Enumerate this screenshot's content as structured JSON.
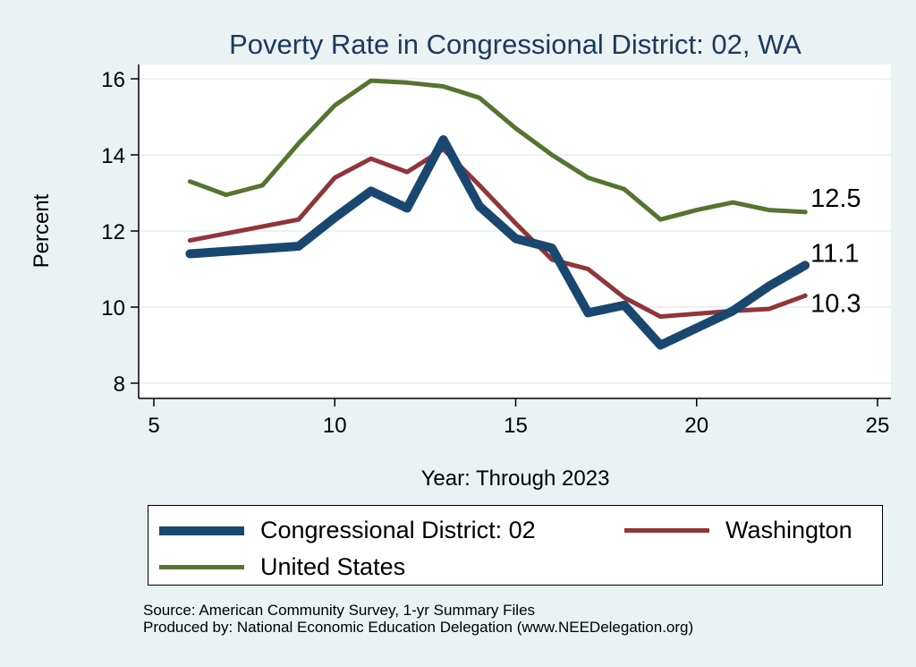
{
  "chart_data": {
    "type": "line",
    "title": "Poverty Rate in Congressional District:  02, WA",
    "xlabel": "Year: Through 2023",
    "ylabel": "Percent",
    "xlim": [
      5,
      25
    ],
    "ylim": [
      7.6,
      16.3
    ],
    "xticks": [
      5,
      10,
      15,
      20,
      25
    ],
    "yticks": [
      8,
      10,
      12,
      14,
      16
    ],
    "grid": true,
    "series": [
      {
        "name": "Congressional District:  02",
        "color": "#1a476f",
        "width": 10,
        "x": [
          6,
          9,
          10,
          11,
          12,
          13,
          14,
          15,
          16,
          17,
          18,
          19,
          20,
          21,
          22,
          23
        ],
        "values": [
          11.4,
          11.6,
          12.35,
          13.05,
          12.6,
          14.4,
          12.65,
          11.8,
          11.55,
          9.85,
          10.05,
          9.0,
          9.45,
          9.9,
          10.55,
          11.1
        ],
        "end_label": "11.1"
      },
      {
        "name": "Washington",
        "color": "#90353b",
        "width": 5,
        "x": [
          6,
          9,
          10,
          11,
          12,
          13,
          14,
          15,
          16,
          17,
          18,
          19,
          21,
          22,
          23
        ],
        "values": [
          11.75,
          12.3,
          13.4,
          13.9,
          13.55,
          14.15,
          13.2,
          12.2,
          11.25,
          11.0,
          10.25,
          9.75,
          9.9,
          9.95,
          10.3
        ],
        "end_label": "10.3"
      },
      {
        "name": "United States",
        "color": "#55752f",
        "width": 5,
        "x": [
          6,
          7,
          8,
          9,
          10,
          11,
          12,
          13,
          14,
          15,
          16,
          17,
          18,
          19,
          20,
          21,
          22,
          23
        ],
        "values": [
          13.3,
          12.95,
          13.2,
          14.3,
          15.3,
          15.95,
          15.9,
          15.8,
          15.5,
          14.7,
          14.0,
          13.4,
          13.1,
          12.3,
          12.55,
          12.75,
          12.55,
          12.5
        ],
        "end_label": "12.5"
      }
    ],
    "legend": [
      "Congressional District:  02",
      "Washington",
      "United States"
    ]
  },
  "source_line1": "Source: American Community Survey, 1-yr Summary Files",
  "source_line2": "Produced by: National Economic Education Delegation (www.NEEDelegation.org)"
}
